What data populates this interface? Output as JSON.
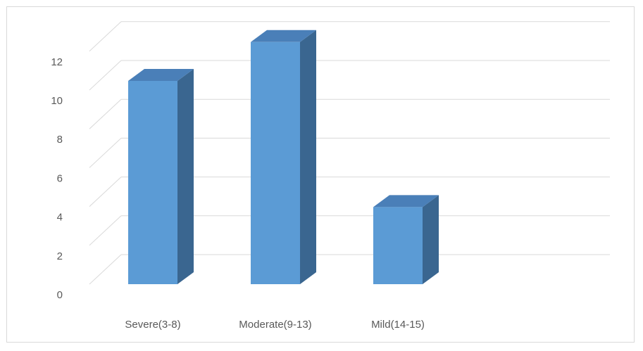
{
  "chart_data": {
    "type": "bar",
    "style": "3d-column",
    "categories": [
      "Severe(3-8)",
      "Moderate(9-13)",
      "Mild(14-15)"
    ],
    "values": [
      10,
      12,
      3.5
    ],
    "title": "",
    "xlabel": "",
    "ylabel": "",
    "ylim": [
      0,
      12
    ],
    "yticks": [
      0,
      2,
      4,
      6,
      8,
      10,
      12
    ],
    "grid": true,
    "legend": "none",
    "colors": {
      "bar_front": "#5b9bd5",
      "bar_top": "#4a7fb8",
      "bar_side": "#3a6690",
      "grid": "#d9d9d9",
      "text": "#595959"
    }
  }
}
